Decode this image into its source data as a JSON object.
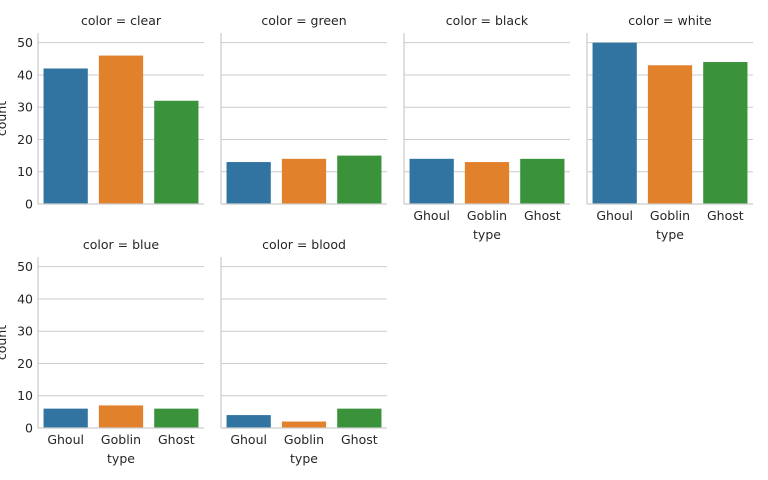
{
  "chart_data": {
    "type": "bar",
    "layout": "facet-grid",
    "categories": [
      "Ghoul",
      "Goblin",
      "Ghost"
    ],
    "category_colors": [
      "#3274a1",
      "#e1812c",
      "#3a923a"
    ],
    "xlabel": "type",
    "ylabel": "count",
    "ylim": [
      0,
      53
    ],
    "yticks": [
      0,
      10,
      20,
      30,
      40,
      50
    ],
    "grid": true,
    "facets": [
      {
        "title": "color = clear",
        "values": [
          42,
          46,
          32
        ]
      },
      {
        "title": "color = green",
        "values": [
          13,
          14,
          15
        ]
      },
      {
        "title": "color = black",
        "values": [
          14,
          13,
          14
        ]
      },
      {
        "title": "color = white",
        "values": [
          50,
          43,
          44
        ]
      },
      {
        "title": "color = blue",
        "values": [
          6,
          7,
          6
        ]
      },
      {
        "title": "color = blood",
        "values": [
          4,
          2,
          6
        ]
      }
    ]
  }
}
